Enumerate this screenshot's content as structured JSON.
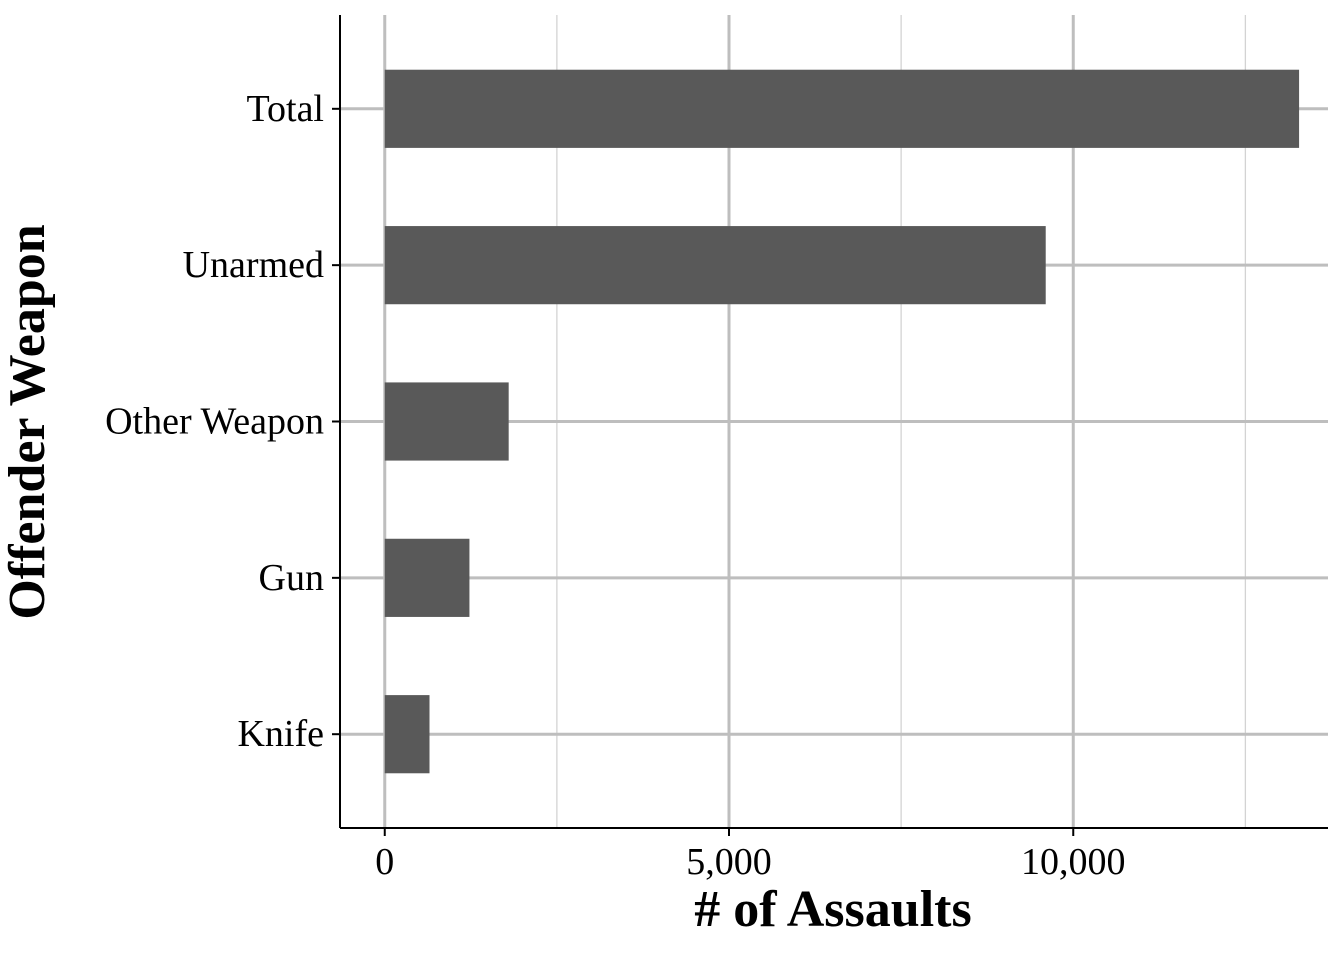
{
  "chart_data": {
    "type": "bar",
    "orientation": "horizontal",
    "categories": [
      "Knife",
      "Gun",
      "Other Weapon",
      "Unarmed",
      "Total"
    ],
    "values": [
      650,
      1230,
      1800,
      9600,
      13280
    ],
    "xlabel": "# of Assaults",
    "ylabel": "Offender Weapon",
    "xlim": [
      -650,
      13700
    ],
    "x_ticks": [
      0,
      5000,
      10000
    ],
    "x_tick_labels": [
      "0",
      "5,000",
      "10,000"
    ],
    "x_minor_ticks": [
      2500,
      7500,
      12500
    ],
    "grid": true,
    "legend": "none",
    "colors": {
      "bar": "#595959",
      "grid_major": "#bebebe",
      "grid_minor": "#d3d3d3",
      "axis": "#000000"
    }
  }
}
